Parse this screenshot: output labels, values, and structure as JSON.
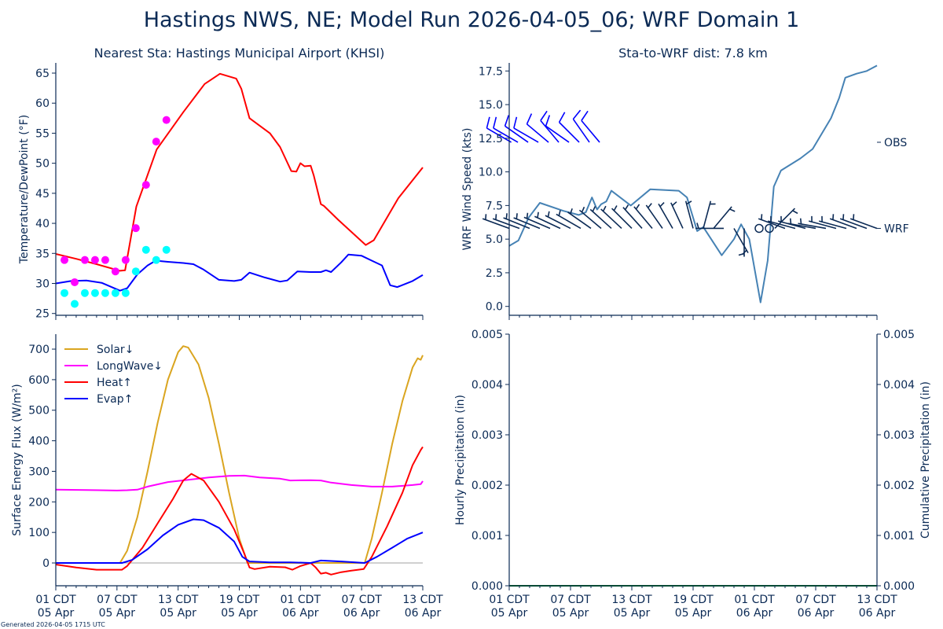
{
  "title": "Hastings NWS, NE; Model Run 2026-04-05_06; WRF Domain 1",
  "footer": "Generated 2026-04-05 1715 UTC",
  "colors": {
    "axis": "#0b2a55",
    "temp": "#ff0000",
    "dew": "#0000ff",
    "obs_temp": "#ff00ff",
    "obs_dew": "#00ffff",
    "wind": "#4682b4",
    "wrf_barb": "#0b2a55",
    "obs_barb": "#0000ff",
    "solar": "#daa520",
    "longwave": "#ff00ff",
    "heat": "#ff0000",
    "evap": "#0000ff",
    "precip": "#008000",
    "zero": "#a0a0a0"
  },
  "x_ticks": {
    "hours": [
      0,
      6,
      12,
      18,
      24,
      30,
      36
    ],
    "labels": [
      [
        "01 CDT",
        "05 Apr"
      ],
      [
        "07 CDT",
        "05 Apr"
      ],
      [
        "13 CDT",
        "05 Apr"
      ],
      [
        "19 CDT",
        "05 Apr"
      ],
      [
        "01 CDT",
        "06 Apr"
      ],
      [
        "07 CDT",
        "06 Apr"
      ],
      [
        "13 CDT",
        "06 Apr"
      ]
    ]
  },
  "chart_data": [
    {
      "id": "temp",
      "type": "line",
      "title": "Nearest Sta: Hastings Municipal Airport (KHSI)",
      "ylabel": "Temperature/DewPoint (°F)",
      "xlim": [
        0,
        36
      ],
      "ylim": [
        24.7,
        66.7
      ],
      "yticks": [
        25,
        30,
        35,
        40,
        45,
        50,
        55,
        60,
        65
      ],
      "series": [
        {
          "name": "WRF Temperature",
          "color_key": "temp",
          "x": [
            0,
            2,
            4,
            6.3,
            6.8,
            7.9,
            9.9,
            12.5,
            14.6,
            16.1,
            17.7,
            18.2,
            19,
            21,
            22,
            23.1,
            23.6,
            24,
            24.4,
            25,
            25.3,
            26,
            26.3,
            27.7,
            30.4,
            31.2,
            33.6,
            36
          ],
          "y": [
            34.9,
            34.1,
            33.2,
            32.1,
            32.2,
            42.8,
            52.3,
            58.5,
            63.2,
            64.9,
            64.1,
            62.4,
            57.5,
            55,
            52.7,
            48.7,
            48.6,
            50,
            49.5,
            49.6,
            48,
            43.2,
            42.9,
            40.6,
            36.4,
            37.2,
            44.2,
            49.3
          ]
        },
        {
          "name": "WRF DewPoint",
          "color_key": "dew",
          "x": [
            0,
            1.5,
            3,
            4.5,
            6.3,
            7,
            8,
            9,
            9.8,
            11,
            12.5,
            13.5,
            14.5,
            16,
            17.5,
            18.2,
            19,
            20.5,
            22,
            22.7,
            23.7,
            25,
            26,
            26.5,
            27,
            28,
            28.7,
            30,
            31,
            32,
            32.8,
            33.5,
            35,
            36
          ],
          "y": [
            30,
            30.4,
            30.5,
            30.1,
            28.8,
            29.2,
            31.5,
            33,
            33.8,
            33.6,
            33.4,
            33.2,
            32.3,
            30.6,
            30.4,
            30.6,
            31.8,
            31,
            30.3,
            30.5,
            32,
            31.9,
            31.9,
            32.2,
            31.9,
            33.5,
            34.8,
            34.6,
            33.8,
            33,
            29.7,
            29.4,
            30.4,
            31.4
          ]
        }
      ],
      "points": [
        {
          "name": "Observed Temperature",
          "color_key": "obs_temp",
          "x": [
            0.85,
            1.85,
            2.85,
            3.85,
            4.85,
            5.85,
            6.85,
            7.85,
            8.85,
            9.85,
            10.85
          ],
          "y": [
            33.9,
            30.2,
            33.9,
            33.9,
            33.9,
            32.0,
            33.9,
            39.2,
            46.4,
            53.6,
            57.2
          ]
        },
        {
          "name": "Observed DewPoint",
          "color_key": "obs_dew",
          "x": [
            0.85,
            1.85,
            2.85,
            3.85,
            4.85,
            5.85,
            6.85,
            7.85,
            8.85,
            9.85,
            10.85
          ],
          "y": [
            28.4,
            26.6,
            28.4,
            28.4,
            28.4,
            28.4,
            28.4,
            32.0,
            35.6,
            33.9,
            35.6
          ]
        }
      ]
    },
    {
      "id": "wind",
      "type": "line",
      "title": "Sta-to-WRF dist: 7.8 km",
      "ylabel": "WRF Wind Speed (kts)",
      "xlim": [
        0,
        36
      ],
      "ylim": [
        -0.66,
        18.1
      ],
      "yticks": [
        0.0,
        2.5,
        5.0,
        7.5,
        10.0,
        12.5,
        15.0,
        17.5
      ],
      "ytick_labels": [
        "0.0",
        "2.5",
        "5.0",
        "7.5",
        "10.0",
        "12.5",
        "15.0",
        "17.5"
      ],
      "right_labels": [
        {
          "value": 12.2,
          "text": "OBS"
        },
        {
          "value": 5.8,
          "text": "WRF"
        }
      ],
      "series": [
        {
          "name": "WRF Wind Speed",
          "color_key": "wind",
          "x": [
            0,
            0.9,
            1.9,
            3,
            5.3,
            6.8,
            7.5,
            8.1,
            8.6,
            9,
            9.5,
            10,
            11.9,
            13.8,
            16.6,
            17.4,
            18.4,
            19,
            20.8,
            22,
            22.7,
            23.5,
            24.6,
            25.3,
            25.9,
            26.6,
            28.5,
            29.7,
            31.5,
            32.3,
            32.9,
            34,
            35,
            36
          ],
          "y": [
            4.5,
            4.9,
            6.6,
            7.7,
            7.1,
            6.8,
            7.0,
            8.1,
            7.2,
            7.6,
            7.8,
            8.6,
            7.5,
            8.7,
            8.6,
            8.1,
            5.6,
            5.9,
            3.8,
            5.0,
            6.1,
            5.0,
            0.3,
            3.4,
            8.9,
            10.1,
            11.0,
            11.7,
            14.0,
            15.5,
            17.0,
            17.3,
            17.5,
            17.9
          ]
        }
      ],
      "barbs": [
        {
          "name": "WRF wind barbs",
          "color_key": "wrf_barb",
          "level": 5.8,
          "x": [
            0,
            1,
            2,
            3,
            4,
            5,
            6,
            7,
            8,
            9,
            10,
            11,
            12,
            13,
            14,
            15,
            16,
            17,
            18,
            19,
            20,
            21,
            22,
            23,
            24,
            25,
            26,
            27,
            28,
            29,
            30,
            31,
            32,
            33,
            34,
            35,
            36
          ],
          "dir": [
            290,
            290,
            292,
            292,
            293,
            295,
            297,
            300,
            305,
            310,
            312,
            313,
            315,
            318,
            320,
            325,
            330,
            335,
            345,
            15,
            40,
            270,
            150,
            180,
            0,
            0,
            45,
            290,
            285,
            285,
            280,
            280,
            285,
            285,
            290,
            290,
            290
          ],
          "speed": [
            5,
            5,
            5,
            5,
            6,
            6,
            6,
            7,
            7,
            8,
            8,
            8,
            8,
            8,
            8,
            8,
            7,
            7,
            6,
            5,
            5,
            6,
            5,
            5,
            0,
            0,
            6,
            7,
            7,
            7,
            7,
            7,
            7,
            7,
            7,
            7,
            7
          ]
        },
        {
          "name": "Observed wind barbs",
          "color_key": "obs_barb",
          "level": 12.2,
          "x": [
            0.2,
            0.85,
            1.85,
            2.85,
            3.85,
            4.85,
            5.85,
            6.85,
            7.85,
            8.85
          ],
          "dir": [
            300,
            300,
            305,
            300,
            310,
            320,
            305,
            315,
            325,
            320
          ],
          "speed": [
            10,
            10,
            10,
            10,
            10,
            10,
            10,
            10,
            10,
            10
          ]
        }
      ]
    },
    {
      "id": "flux",
      "type": "line",
      "ylabel": "Surface Energy Flux (W/m²)",
      "xlim": [
        0,
        36
      ],
      "ylim": [
        -74.6,
        749
      ],
      "yticks": [
        0,
        100,
        200,
        300,
        400,
        500,
        600,
        700
      ],
      "legend_position": "upper-left",
      "series": [
        {
          "name": "Solar↓",
          "color_key": "solar",
          "x": [
            0,
            6.3,
            7,
            8,
            9,
            10,
            11,
            12,
            12.5,
            13,
            14,
            15,
            16,
            17,
            18,
            18.8,
            30.3,
            31,
            32,
            33,
            34,
            35,
            35.5,
            35.8,
            36
          ],
          "y": [
            0,
            0,
            40,
            150,
            300,
            460,
            600,
            690,
            710,
            705,
            650,
            540,
            390,
            230,
            80,
            0,
            0,
            80,
            230,
            390,
            530,
            640,
            670,
            665,
            680
          ]
        },
        {
          "name": "LongWave↓",
          "color_key": "longwave",
          "x": [
            0,
            3,
            6,
            7,
            8,
            9,
            11,
            13,
            15,
            17,
            18.5,
            20,
            22,
            23,
            25,
            26,
            27,
            29,
            31,
            33,
            35,
            35.8,
            36
          ],
          "y": [
            240,
            239,
            237,
            238,
            240,
            250,
            265,
            272,
            280,
            285,
            286,
            280,
            276,
            270,
            271,
            270,
            263,
            255,
            250,
            250,
            255,
            258,
            268
          ]
        },
        {
          "name": "Heat↑",
          "color_key": "heat",
          "x": [
            0,
            2,
            4,
            6.5,
            7,
            8.5,
            10,
            11.5,
            12.5,
            13.3,
            14.5,
            16,
            17.5,
            18.5,
            19,
            19.5,
            21,
            22.5,
            23.2,
            24,
            25,
            25.5,
            26,
            26.5,
            27,
            28,
            29,
            30.2,
            31,
            32.5,
            34,
            35,
            35.8,
            36
          ],
          "y": [
            -5,
            -15,
            -22,
            -22,
            -10,
            50,
            130,
            210,
            270,
            292,
            270,
            200,
            110,
            30,
            -15,
            -20,
            -12,
            -14,
            -22,
            -10,
            0,
            -15,
            -35,
            -32,
            -38,
            -30,
            -25,
            -20,
            20,
            120,
            230,
            320,
            370,
            380
          ]
        },
        {
          "name": "Evap↑",
          "color_key": "evap",
          "x": [
            0,
            6.5,
            7.5,
            9,
            10.5,
            12,
            13.5,
            14.5,
            16,
            17.5,
            18.3,
            19,
            21,
            23,
            25,
            26,
            28,
            30.3,
            31.5,
            33,
            34.5,
            36
          ],
          "y": [
            0,
            0,
            10,
            45,
            90,
            125,
            143,
            140,
            115,
            70,
            20,
            5,
            2,
            2,
            0,
            8,
            5,
            0,
            20,
            50,
            80,
            100
          ]
        }
      ]
    },
    {
      "id": "precip",
      "type": "line",
      "ylabel": "Hourly Precipitation (in)",
      "ylabel_right": "Cumulative Precipitation (in)",
      "xlim": [
        0,
        36
      ],
      "ylim": [
        0,
        0.005
      ],
      "yticks": [
        0,
        0.001,
        0.002,
        0.003,
        0.004,
        0.005
      ],
      "ytick_labels": [
        "0.000",
        "0.001",
        "0.002",
        "0.003",
        "0.004",
        "0.005"
      ],
      "series": [
        {
          "name": "Cumulative Precipitation",
          "color_key": "precip",
          "x": [
            0,
            36
          ],
          "y": [
            0,
            0
          ]
        }
      ]
    }
  ]
}
